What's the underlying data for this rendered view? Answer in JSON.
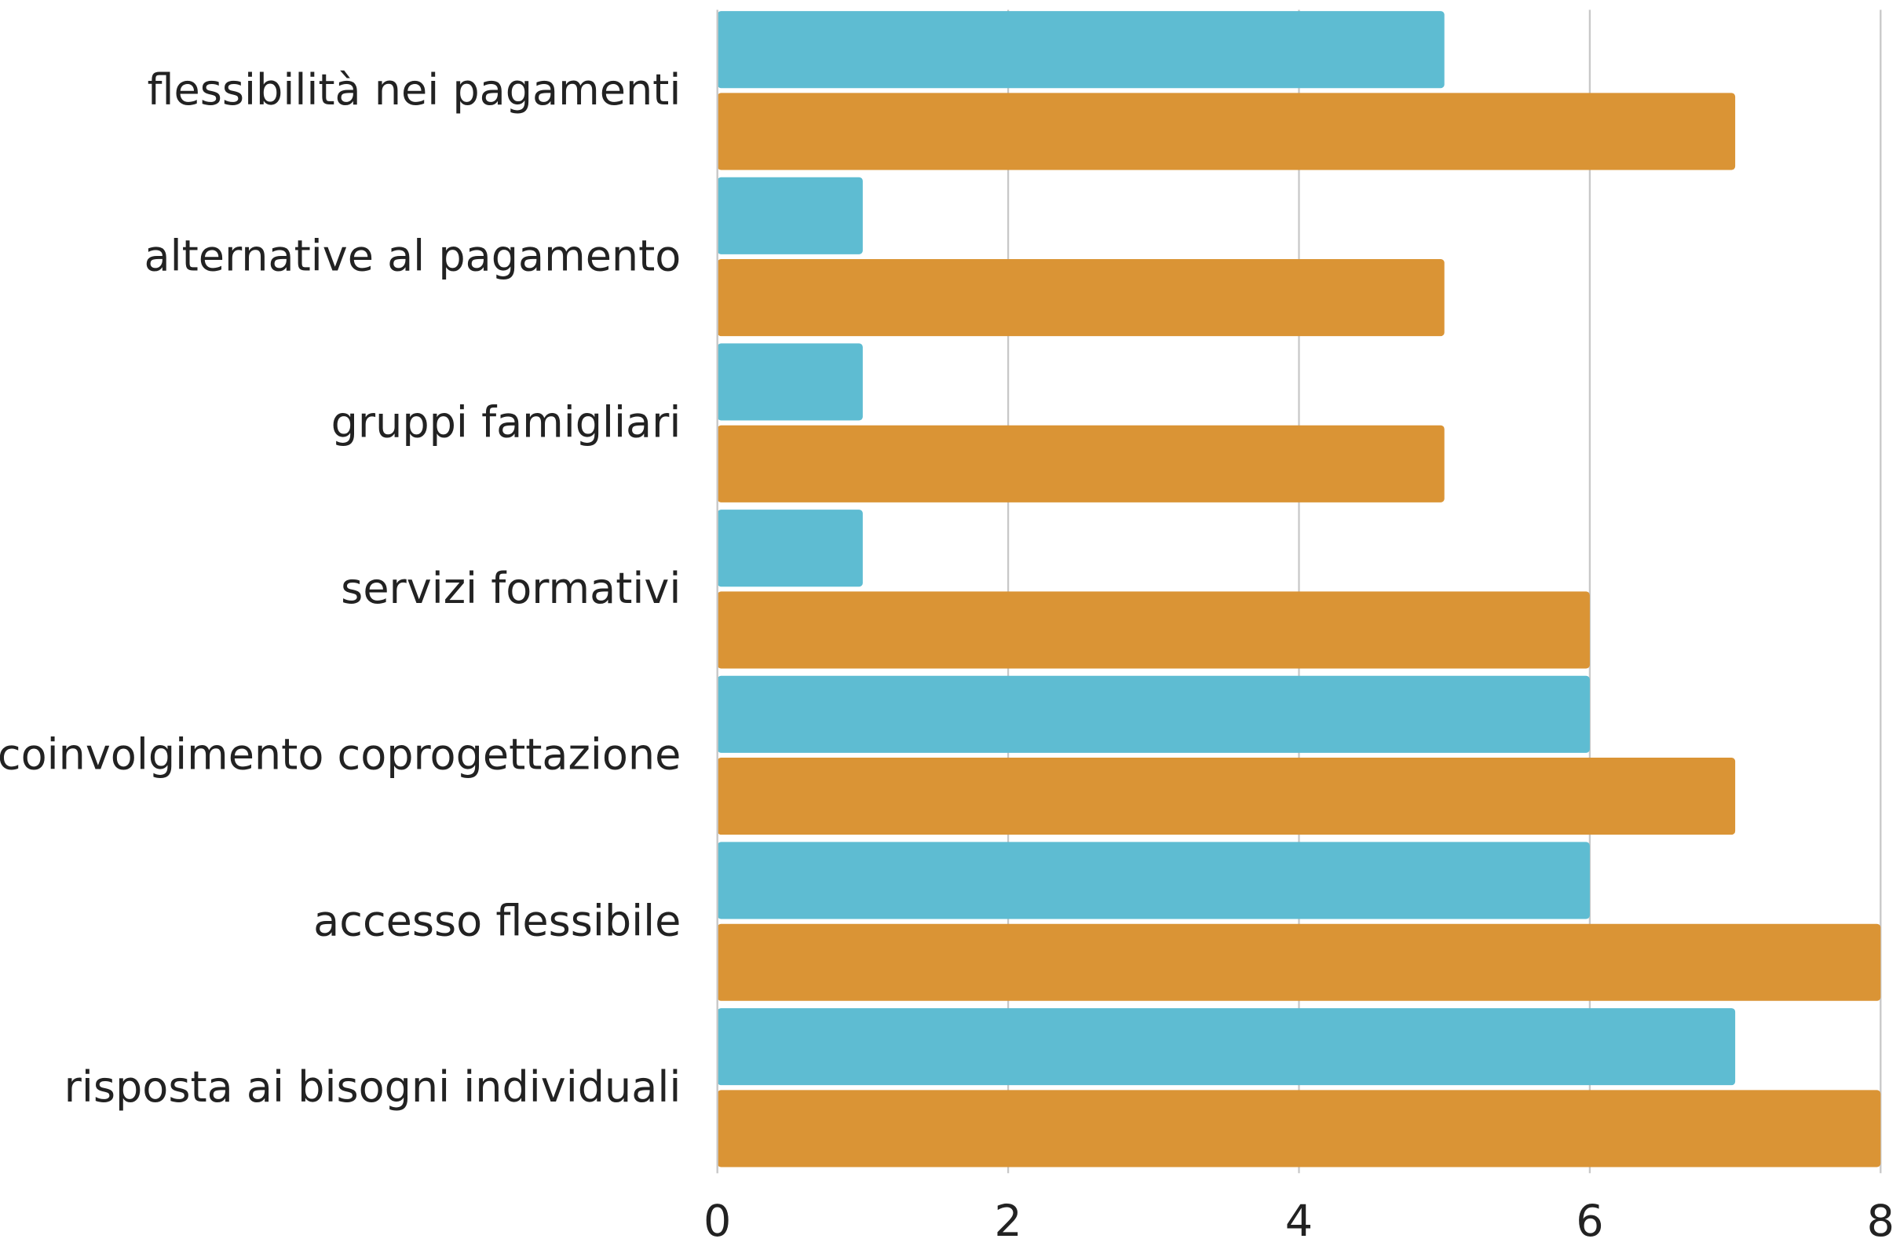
{
  "chart_data": {
    "type": "hbar",
    "categories": [
      "flessibilità nei pagamenti",
      "alternative al pagamento",
      "gruppi famigliari",
      "servizi formativi",
      "coinvolgimento coprogettazione",
      "accesso flessibile",
      "risposta ai bisogni individuali"
    ],
    "series": [
      {
        "color": "#5ebcd2",
        "values": [
          5,
          1,
          1,
          1,
          6,
          6,
          7
        ]
      },
      {
        "color": "#da9435",
        "values": [
          7,
          5,
          5,
          6,
          7,
          8,
          8
        ]
      }
    ],
    "xlim": [
      0,
      8
    ],
    "xticks": [
      0,
      2,
      4,
      6,
      8
    ],
    "grid": true
  }
}
